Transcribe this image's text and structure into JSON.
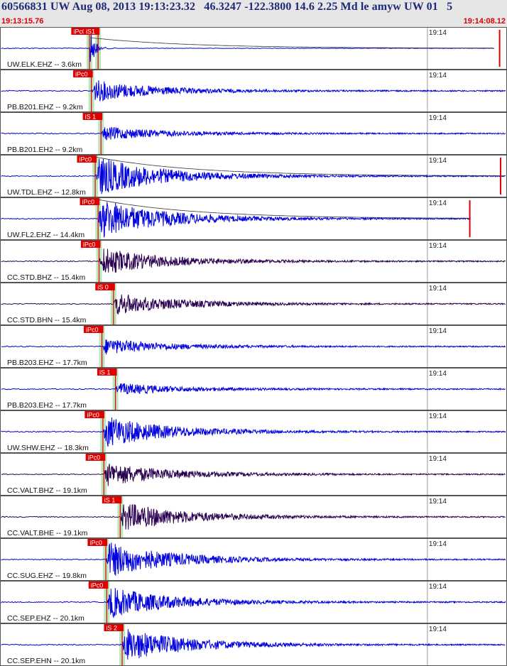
{
  "header": {
    "title": "60566831 UW Aug 08, 2013 19:13:23.32   46.3247 -122.3800 14.6 2.25 Md le amyw UW 01   5",
    "start_time": "19:13:15.76",
    "end_time": "19:14:08.12"
  },
  "colors": {
    "trace_blue": "#0000e0",
    "trace_dark": "#2a0050",
    "pick_red": "#e00000",
    "pick_band": "#b6e2b6",
    "panel_border": "#555555",
    "minute_tick": "#9a9a9a"
  },
  "chart_data": {
    "type": "line",
    "title": "60566831 UW Aug 08, 2013 19:13:23.32",
    "x_range": [
      "19:13:15.76",
      "19:14:08.12"
    ],
    "minute_tick_label": "19:14",
    "minute_tick_time": "19:14:00",
    "grid": false,
    "series": [
      {
        "name": "UW.ELK.EHZ -- 3.6km",
        "station_label": "UW.ELK.EHZ -- 3.6km",
        "picks": [
          {
            "label": "iPc0",
            "time": "19:13:24.9"
          },
          {
            "label": "iS1",
            "time": "19:13:25.8"
          }
        ],
        "onset": "19:13:25.0",
        "amplitude": 0.55,
        "color": "blue",
        "start": "19:13:15.76",
        "end": "19:14:07.0",
        "artifact": "19:14:07.5",
        "decay_curve": true,
        "wave_type": "step"
      },
      {
        "name": "PB.B201.EHZ -- 9.2km",
        "station_label": "PB.B201.EHZ -- 9.2km",
        "picks": [
          {
            "label": "iPc0",
            "time": "19:13:25.1"
          }
        ],
        "onset": "19:13:25.1",
        "amplitude": 0.55,
        "color": "blue",
        "start": "19:13:15.76",
        "end": "19:14:08.12"
      },
      {
        "name": "PB.B201.EH2 -- 9.2km",
        "station_label": "PB.B201.EH2 -- 9.2km",
        "picks": [
          {
            "label": "iS 1",
            "time": "19:13:26.1"
          }
        ],
        "onset": "19:13:26.1",
        "amplitude": 0.35,
        "color": "blue",
        "start": "19:13:15.76",
        "end": "19:14:08.12"
      },
      {
        "name": "UW.TDL.EHZ -- 12.8km",
        "station_label": "UW.TDL.EHZ -- 12.8km",
        "picks": [
          {
            "label": "iPc0",
            "time": "19:13:25.5"
          }
        ],
        "onset": "19:13:25.5",
        "amplitude": 1.0,
        "color": "blue",
        "start": "19:13:15.76",
        "end": "19:14:08.12",
        "artifact": "19:14:07.6",
        "decay_curve": true
      },
      {
        "name": "UW.FL2.EHZ -- 14.4km",
        "station_label": "UW.FL2.EHZ -- 14.4km",
        "picks": [
          {
            "label": "iPc0",
            "time": "19:13:25.8"
          }
        ],
        "onset": "19:13:25.8",
        "amplitude": 1.0,
        "color": "blue",
        "start": "19:13:15.76",
        "end": "19:14:04.5",
        "artifact": "19:14:04.4",
        "decay_curve": true
      },
      {
        "name": "CC.STD.BHZ -- 15.4km",
        "station_label": "CC.STD.BHZ -- 15.4km",
        "picks": [
          {
            "label": "iPc0",
            "time": "19:13:25.9"
          }
        ],
        "onset": "19:13:25.9",
        "amplitude": 0.7,
        "color": "dark",
        "start": "19:13:15.76",
        "end": "19:14:08.12"
      },
      {
        "name": "CC.STD.BHN -- 15.4km",
        "station_label": "CC.STD.BHN -- 15.4km",
        "picks": [
          {
            "label": "iS 0",
            "time": "19:13:27.4"
          }
        ],
        "onset": "19:13:27.4",
        "amplitude": 0.55,
        "color": "dark",
        "start": "19:13:15.76",
        "end": "19:14:08.12"
      },
      {
        "name": "PB.B203.EHZ -- 17.7km",
        "station_label": "PB.B203.EHZ -- 17.7km",
        "picks": [
          {
            "label": "iPc0",
            "time": "19:13:26.2"
          }
        ],
        "onset": "19:13:26.2",
        "amplitude": 0.4,
        "color": "blue",
        "start": "19:13:15.76",
        "end": "19:14:08.12"
      },
      {
        "name": "PB.B203.EH2 -- 17.7km",
        "station_label": "PB.B203.EH2 -- 17.7km",
        "picks": [
          {
            "label": "iS 1",
            "time": "19:13:27.6"
          }
        ],
        "onset": "19:13:27.6",
        "amplitude": 0.3,
        "color": "blue",
        "start": "19:13:15.76",
        "end": "19:14:08.12"
      },
      {
        "name": "UW.SHW.EHZ -- 18.3km",
        "station_label": "UW.SHW.EHZ -- 18.3km",
        "picks": [
          {
            "label": "iPc0",
            "time": "19:13:26.3"
          }
        ],
        "onset": "19:13:26.3",
        "amplitude": 0.8,
        "color": "blue",
        "start": "19:13:15.76",
        "end": "19:14:08.12"
      },
      {
        "name": "CC.VALT.BHZ -- 19.1km",
        "station_label": "CC.VALT.BHZ -- 19.1km",
        "picks": [
          {
            "label": "iPc0",
            "time": "19:13:26.4"
          }
        ],
        "onset": "19:13:26.4",
        "amplitude": 0.6,
        "color": "dark",
        "start": "19:13:15.76",
        "end": "19:14:08.12"
      },
      {
        "name": "CC.VALT.BHE -- 19.1km",
        "station_label": "CC.VALT.BHE -- 19.1km",
        "picks": [
          {
            "label": "iS 1",
            "time": "19:13:28.1"
          }
        ],
        "onset": "19:13:28.1",
        "amplitude": 0.75,
        "color": "dark",
        "start": "19:13:15.76",
        "end": "19:14:08.12"
      },
      {
        "name": "CC.SUG.EHZ -- 19.8km",
        "station_label": "CC.SUG.EHZ -- 19.8km",
        "picks": [
          {
            "label": "iPc0",
            "time": "19:13:26.6"
          }
        ],
        "onset": "19:13:26.6",
        "amplitude": 0.9,
        "color": "blue",
        "start": "19:13:15.76",
        "end": "19:14:08.12"
      },
      {
        "name": "CC.SEP.EHZ -- 20.1km",
        "station_label": "CC.SEP.EHZ -- 20.1km",
        "picks": [
          {
            "label": "iPc0",
            "time": "19:13:26.7"
          }
        ],
        "onset": "19:13:26.7",
        "amplitude": 0.8,
        "color": "blue",
        "start": "19:13:15.76",
        "end": "19:14:08.12"
      },
      {
        "name": "CC.SEP.EHN -- 20.1km",
        "station_label": "CC.SEP.EHN -- 20.1km",
        "picks": [
          {
            "label": "iS 2",
            "time": "19:13:28.3"
          }
        ],
        "onset": "19:13:28.3",
        "amplitude": 0.85,
        "color": "blue",
        "start": "19:13:15.76",
        "end": "19:14:08.12"
      }
    ]
  }
}
